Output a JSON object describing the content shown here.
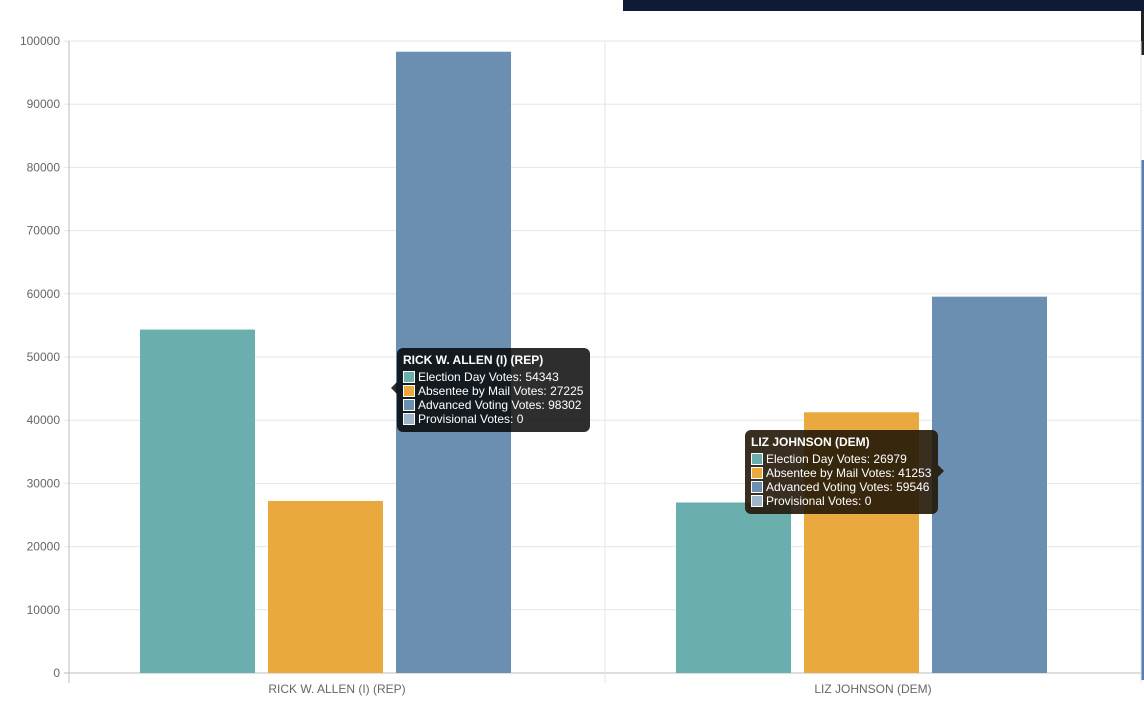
{
  "chart_data": {
    "type": "bar",
    "categories": [
      "RICK W. ALLEN (I) (REP)",
      "LIZ JOHNSON (DEM)"
    ],
    "series": [
      {
        "name": "Election Day Votes",
        "values": [
          54343,
          26979
        ],
        "color": "#6aafad"
      },
      {
        "name": "Absentee by Mail Votes",
        "values": [
          27225,
          41253
        ],
        "color": "#e9a93f"
      },
      {
        "name": "Advanced Voting Votes",
        "values": [
          98302,
          59546
        ],
        "color": "#6b8fb0"
      },
      {
        "name": "Provisional Votes",
        "values": [
          0,
          0
        ],
        "color": "#9fb5cc"
      }
    ],
    "ylim": [
      0,
      100000
    ],
    "yticks": [
      0,
      10000,
      20000,
      30000,
      40000,
      50000,
      60000,
      70000,
      80000,
      90000,
      100000
    ],
    "grid": true
  },
  "tooltips": [
    {
      "title": "RICK W. ALLEN (I) (REP)",
      "rows": [
        "Election Day Votes: 54343",
        "Absentee by Mail Votes: 27225",
        "Advanced Voting Votes: 98302",
        "Provisional Votes: 0"
      ]
    },
    {
      "title": "LIZ JOHNSON (DEM)",
      "rows": [
        "Election Day Votes: 26979",
        "Absentee by Mail Votes: 41253",
        "Advanced Voting Votes: 59546",
        "Provisional Votes: 0"
      ]
    }
  ]
}
